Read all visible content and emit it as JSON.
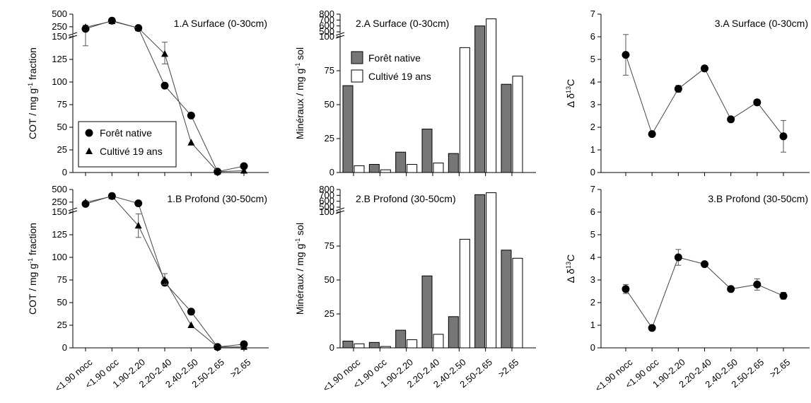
{
  "chart_data": [
    {
      "type": "line",
      "title": "1.A Surface (0-30cm)",
      "ylabel": {
        "main": "COT / mg g",
        "sup": "-1",
        "tail": " fraction"
      },
      "categories": [
        "<1.90 nocc",
        "<1.90 occ",
        "1.90-2.20",
        "2.20-2.40",
        "2.40-2.50",
        "2.50-2.65",
        ">2.65"
      ],
      "lower_axis": {
        "ylim": [
          0,
          150
        ],
        "ticks": [
          "0",
          "25",
          "50",
          "75",
          "100",
          "125",
          "150"
        ]
      },
      "upper_axis": {
        "ylim": [
          150,
          500
        ],
        "ticks": [
          "250",
          "500"
        ],
        "scale": "broken"
      },
      "legend": {
        "position": "lower-left",
        "boxed": true
      },
      "series": [
        {
          "name": "Forêt native",
          "marker": "circle",
          "values": [
            210,
            370,
            225,
            96,
            63,
            1,
            7
          ],
          "err": [
            null,
            null,
            null,
            null,
            null,
            null,
            null
          ],
          "err_low": [
            140,
            null,
            null,
            null,
            null,
            null,
            null
          ],
          "err_high": [
            280,
            null,
            null,
            null,
            null,
            null,
            null
          ]
        },
        {
          "name": "Cultivé 19 ans",
          "marker": "triangle",
          "values": [
            240,
            360,
            225,
            131,
            33,
            1,
            2
          ],
          "err_low": [
            null,
            null,
            null,
            120,
            null,
            null,
            null
          ],
          "err_high": [
            null,
            null,
            null,
            144,
            null,
            null,
            null
          ]
        }
      ]
    },
    {
      "type": "bar",
      "title": "2.A Surface (0-30cm)",
      "ylabel": {
        "main": "Minéraux / mg g",
        "sup": "-1",
        "tail": " sol"
      },
      "categories": [
        "<1.90 nocc",
        "<1.90 occ",
        "1.90-2.20",
        "2.20-2.40",
        "2.40-2.50",
        "2.50-2.65",
        ">2.65"
      ],
      "lower_axis": {
        "ylim": [
          0,
          100
        ],
        "ticks": [
          "0",
          "25",
          "50",
          "75",
          "100"
        ]
      },
      "upper_axis": {
        "ylim": [
          500,
          800
        ],
        "ticks": [
          "500",
          "600",
          "700",
          "800"
        ],
        "scale": "broken"
      },
      "legend": {
        "position": "top-left",
        "boxed": false
      },
      "series": [
        {
          "name": "Forêt native",
          "color": "#777777",
          "values": [
            64,
            6,
            15,
            32,
            14,
            600,
            65
          ]
        },
        {
          "name": "Cultivé 19 ans",
          "color": "#ffffff",
          "values": [
            5,
            2,
            6,
            7,
            92,
            720,
            71
          ]
        }
      ]
    },
    {
      "type": "line",
      "title": "3.A Surface (0-30cm)",
      "ylabel": {
        "main": "Δ δ",
        "sup": "13",
        "tail": "C"
      },
      "categories": [
        "<1.90 nocc",
        "<1.90 occ",
        "1.90-2.20",
        "2.20-2.40",
        "2.40-2.50",
        "2.50-2.65",
        ">2.65"
      ],
      "ylim": [
        0,
        7
      ],
      "ticks": [
        "0",
        "1",
        "2",
        "3",
        "4",
        "5",
        "6",
        "7"
      ],
      "series": [
        {
          "marker": "circle",
          "values": [
            5.2,
            1.7,
            3.7,
            4.6,
            2.35,
            3.1,
            1.6
          ],
          "err": [
            0.9,
            0.05,
            0.15,
            0.05,
            0.05,
            0.12,
            0.7
          ]
        }
      ]
    },
    {
      "type": "line",
      "title": "1.B Profond (30-50cm)",
      "ylabel": {
        "main": "COT / mg g",
        "sup": "-1",
        "tail": " fraction"
      },
      "categories": [
        "<1.90 nocc",
        "<1.90 occ",
        "1.90-2.20",
        "2.20-2.40",
        "2.40-2.50",
        "2.50-2.65",
        ">2.65"
      ],
      "lower_axis": {
        "ylim": [
          0,
          150
        ],
        "ticks": [
          "0",
          "25",
          "50",
          "75",
          "100",
          "125",
          "150"
        ]
      },
      "upper_axis": {
        "ylim": [
          150,
          500
        ],
        "ticks": [
          "250",
          "500"
        ],
        "scale": "broken"
      },
      "series": [
        {
          "name": "Forêt native",
          "marker": "circle",
          "values": [
            215,
            370,
            225,
            72,
            40,
            1,
            4
          ],
          "err_low": [
            null,
            null,
            null,
            69,
            null,
            null,
            null
          ],
          "err_high": [
            null,
            null,
            null,
            76,
            null,
            null,
            null
          ]
        },
        {
          "name": "Cultivé 19 ans",
          "marker": "triangle",
          "values": [
            245,
            365,
            135,
            75,
            25,
            1,
            1
          ],
          "err_low": [
            null,
            null,
            122,
            70,
            null,
            null,
            null
          ],
          "err_high": [
            null,
            null,
            148,
            82,
            null,
            null,
            null
          ]
        }
      ]
    },
    {
      "type": "bar",
      "title": "2.B Profond (30-50cm)",
      "ylabel": {
        "main": "Minéraux / mg g",
        "sup": "-1",
        "tail": " sol"
      },
      "categories": [
        "<1.90 nocc",
        "<1.90 occ",
        "1.90-2.20",
        "2.20-2.40",
        "2.40-2.50",
        "2.50-2.65",
        ">2.65"
      ],
      "lower_axis": {
        "ylim": [
          0,
          100
        ],
        "ticks": [
          "0",
          "25",
          "50",
          "75",
          "100"
        ]
      },
      "upper_axis": {
        "ylim": [
          500,
          800
        ],
        "ticks": [
          "500",
          "600",
          "700",
          "800"
        ],
        "scale": "broken"
      },
      "series": [
        {
          "name": "Forêt native",
          "color": "#777777",
          "values": [
            5,
            4,
            13,
            53,
            23,
            712,
            72
          ]
        },
        {
          "name": "Cultivé 19 ans",
          "color": "#ffffff",
          "values": [
            3,
            1,
            6,
            10,
            80,
            745,
            66
          ]
        }
      ]
    },
    {
      "type": "line",
      "title": "3.B Profond (30-50cm)",
      "ylabel": {
        "main": "Δ δ",
        "sup": "13",
        "tail": "C"
      },
      "categories": [
        "<1.90 nocc",
        "<1.90 occ",
        "1.90-2.20",
        "2.20-2.40",
        "2.40-2.50",
        "2.50-2.65",
        ">2.65"
      ],
      "ylim": [
        0,
        7
      ],
      "ticks": [
        "0",
        "1",
        "2",
        "3",
        "4",
        "5",
        "6",
        "7"
      ],
      "series": [
        {
          "marker": "circle",
          "values": [
            2.6,
            0.88,
            4.0,
            3.7,
            2.6,
            2.8,
            2.3
          ],
          "err": [
            0.2,
            0.05,
            0.35,
            0.05,
            0.1,
            0.25,
            0.15
          ]
        }
      ]
    }
  ]
}
